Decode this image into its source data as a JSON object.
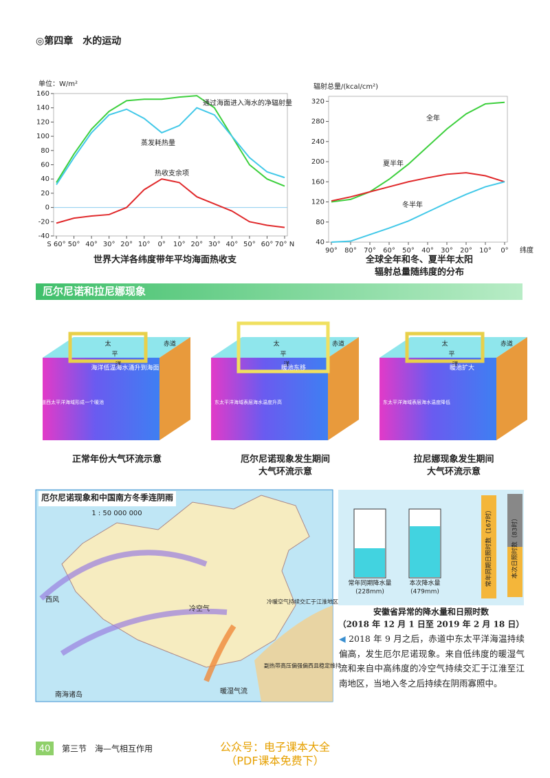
{
  "header": {
    "chapter": "◎第四章　水的运动"
  },
  "chart_data": [
    {
      "type": "line",
      "ylabel": "单位：W/m²",
      "title": [
        "世界大洋各纬度带年平均海面热收支"
      ],
      "categories": [
        "S 60°",
        "50°",
        "40°",
        "30°",
        "20°",
        "10°",
        "0°",
        "10°",
        "20°",
        "30°",
        "40°",
        "50°",
        "60°",
        "70° N"
      ],
      "ylim": [
        -40,
        160
      ],
      "yticks": [
        -40,
        -20,
        0,
        20,
        40,
        60,
        80,
        100,
        120,
        140,
        160
      ],
      "grid": false,
      "series": [
        {
          "name": "通过海面进入海水的净辐射量",
          "color": "#3ccf3c",
          "values": [
            35,
            75,
            110,
            135,
            150,
            152,
            152,
            155,
            157,
            140,
            100,
            60,
            40,
            30
          ]
        },
        {
          "name": "蒸发耗热量",
          "color": "#41c8e8",
          "values": [
            32,
            70,
            105,
            130,
            138,
            125,
            105,
            115,
            140,
            130,
            100,
            70,
            50,
            42
          ]
        },
        {
          "name": "热收支余项",
          "color": "#e0282a",
          "values": [
            -22,
            -15,
            -12,
            -10,
            0,
            25,
            40,
            35,
            15,
            5,
            -5,
            -20,
            -25,
            -28
          ]
        }
      ]
    },
    {
      "type": "line",
      "ylabel": "辐射总量/(kcal/cm²)",
      "xlabel": "纬度",
      "title": [
        "全球全年和冬、夏半年太阳",
        "辐射总量随纬度的分布"
      ],
      "categories": [
        "90°",
        "80°",
        "70°",
        "60°",
        "50°",
        "40°",
        "30°",
        "20°",
        "10°",
        "0°"
      ],
      "ylim": [
        40,
        330
      ],
      "yticks": [
        40,
        80,
        120,
        160,
        200,
        240,
        280,
        320
      ],
      "grid": false,
      "series": [
        {
          "name": "全年",
          "color": "#3ccf3c",
          "values": [
            120,
            125,
            140,
            165,
            195,
            230,
            265,
            295,
            315,
            318
          ]
        },
        {
          "name": "夏半年",
          "color": "#e0282a",
          "values": [
            122,
            130,
            140,
            150,
            160,
            168,
            175,
            178,
            172,
            160
          ]
        },
        {
          "name": "冬半年",
          "color": "#41c8e8",
          "values": [
            40,
            42,
            55,
            68,
            82,
            100,
            118,
            135,
            150,
            160
          ]
        }
      ]
    }
  ],
  "section": {
    "title": "厄尔尼诺和拉尼娜现象"
  },
  "diagrams": [
    {
      "caption": [
        "正常年份大气环流示意"
      ],
      "labels": [
        "太",
        "平",
        "洋",
        "赤道",
        "赤道西太平洋海域形成一个暖池",
        "海洋低温海水涌升到海面"
      ]
    },
    {
      "caption": [
        "厄尔尼诺现象发生期间",
        "大气环流示意"
      ],
      "labels": [
        "太",
        "平",
        "洋",
        "赤道",
        "赤道中、东太平洋海域表层海水温度升高",
        "暖池东移"
      ]
    },
    {
      "caption": [
        "拉尼娜现象发生期间",
        "大气环流示意"
      ],
      "labels": [
        "太",
        "平",
        "洋",
        "赤道",
        "赤道中、东太平洋海域表层海水温度降低",
        "暖池扩大"
      ]
    }
  ],
  "map": {
    "title": "厄尔尼诺现象和中国南方冬季连阴雨",
    "scale": "1 : 50 000 000",
    "labels": [
      "西风",
      "冷空气",
      "冷暖空气持续交汇于江淮地区",
      "副热带高压偏强偏西且稳定维持",
      "暖湿气流",
      "南海诸岛"
    ]
  },
  "gauges": {
    "items": [
      "常年同期降水量",
      "(228mm)",
      "本次降水量",
      "(479mm)"
    ],
    "bars": [
      "常年同期日照时数（167时）",
      "本次日照时数（83时）"
    ],
    "caption": [
      "安徽省异常的降水量和日照时数",
      "（2018 年 12 月 1 日至 2019 年 2 月 18 日）"
    ]
  },
  "paragraph": "2018 年 9 月之后，赤道中东太平洋海温持续偏高，发生厄尔尼诺现象。来自低纬度的暖湿气流和来自中高纬度的冷空气持续交汇于江淮至江南地区，当地入冬之后持续在阴雨寡照中。",
  "footer": {
    "page": "40",
    "section": "第三节　海—气相互作用",
    "watermark": [
      "公众号：电子课本大全",
      "（PDF课本免费下）"
    ]
  }
}
